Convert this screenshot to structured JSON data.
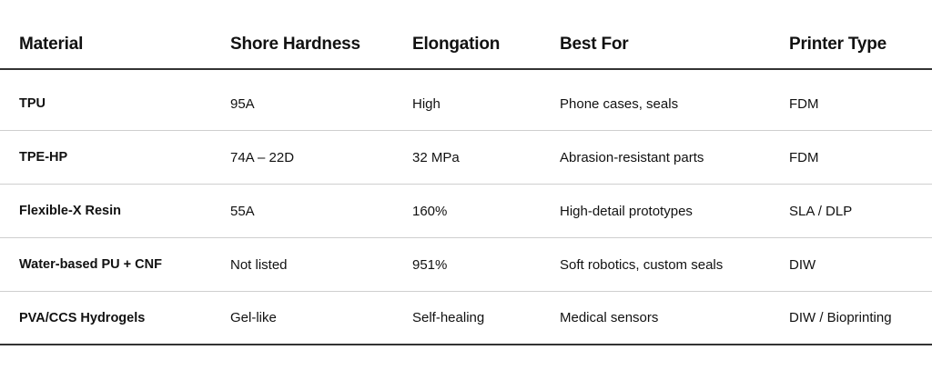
{
  "table": {
    "headers": [
      "Material",
      "Shore Hardness",
      "Elongation",
      "Best For",
      "Printer Type"
    ],
    "rows": [
      [
        "TPU",
        "95A",
        "High",
        "Phone cases, seals",
        "FDM"
      ],
      [
        "TPE-HP",
        "74A – 22D",
        "32 MPa",
        "Abrasion-resistant parts",
        "FDM"
      ],
      [
        "Flexible-X Resin",
        "55A",
        "160%",
        "High-detail prototypes",
        "SLA / DLP"
      ],
      [
        "Water-based PU + CNF",
        "Not listed",
        "951%",
        "Soft robotics, custom seals",
        "DIW"
      ],
      [
        "PVA/CCS Hydrogels",
        "Gel-like",
        "Self-healing",
        "Medical sensors",
        "DIW / Bioprinting"
      ]
    ]
  }
}
